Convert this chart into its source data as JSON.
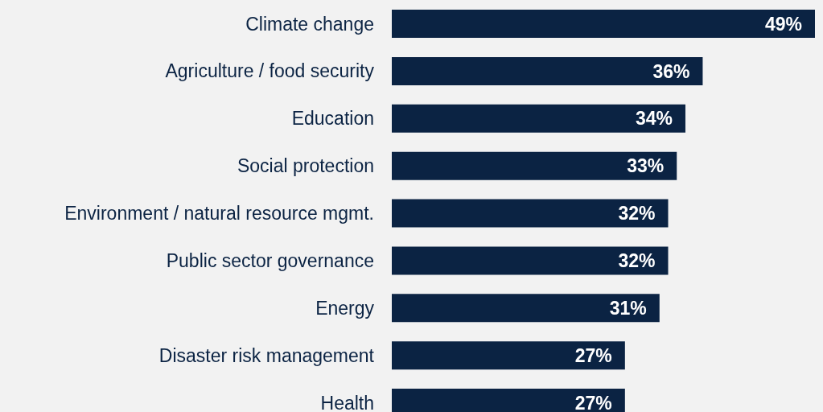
{
  "chart_data": {
    "type": "bar",
    "orientation": "horizontal",
    "relative": false,
    "categories": [
      "Climate change",
      "Agriculture / food security",
      "Education",
      "Social protection",
      "Environment / natural resource mgmt.",
      "Public sector governance",
      "Energy",
      "Disaster risk management",
      "Health"
    ],
    "values": [
      49,
      36,
      34,
      33,
      32,
      32,
      31,
      27,
      27
    ],
    "value_labels": [
      "49%",
      "36%",
      "34%",
      "33%",
      "32%",
      "32%",
      "31%",
      "27%",
      "27%"
    ],
    "color": "#0b2343"
  }
}
